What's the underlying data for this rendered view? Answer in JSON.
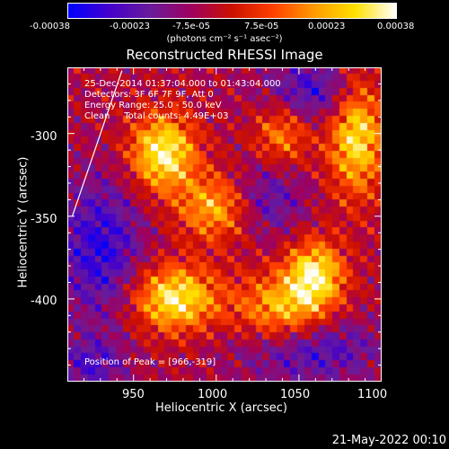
{
  "chart_data": {
    "type": "heatmap",
    "title": "Reconstructed RHESSI Image",
    "xlabel": "Heliocentric X (arcsec)",
    "ylabel": "Heliocentric Y (arcsec)",
    "xlim": [
      910,
      1100
    ],
    "ylim": [
      -450,
      -260
    ],
    "x_ticks": [
      950,
      1000,
      1050,
      1100
    ],
    "y_ticks": [
      -300,
      -350,
      -400
    ],
    "colorbar": {
      "ticks": [
        "-0.00038",
        "-0.00023",
        "-7.5e-05",
        "7.5e-05",
        "0.00023",
        "0.00038"
      ],
      "range": [
        -0.00038,
        0.00038
      ],
      "units": "(photons cm⁻² s⁻¹ asec⁻²)",
      "colormap": [
        "#0000ff",
        "#4400cc",
        "#6a1b9a",
        "#9e0060",
        "#cc1000",
        "#ff4000",
        "#ff9a00",
        "#ffe000",
        "#ffffff"
      ]
    },
    "annotations": {
      "time_range": "25-Dec-2014 01:37:04.000 to 01:43:04.000",
      "detectors": "Detectors: 3F 6F 7F 9F, Att 0",
      "energy": "Energy Range: 25.0 - 50.0 keV",
      "clean": "Clean     Total counts: 4.49E+03",
      "peak": "Position of Peak = [966,-319]"
    },
    "limb_line": [
      [
        913,
        -350
      ],
      [
        943,
        -262
      ]
    ],
    "bright_regions": [
      {
        "x": 968,
        "y": -312,
        "intensity": 1.0,
        "sigma_x": 14,
        "sigma_y": 16
      },
      {
        "x": 1000,
        "y": -345,
        "intensity": 0.7,
        "sigma_x": 16,
        "sigma_y": 14
      },
      {
        "x": 975,
        "y": -400,
        "intensity": 0.95,
        "sigma_x": 18,
        "sigma_y": 14
      },
      {
        "x": 1040,
        "y": -408,
        "intensity": 0.75,
        "sigma_x": 20,
        "sigma_y": 16
      },
      {
        "x": 1060,
        "y": -385,
        "intensity": 0.9,
        "sigma_x": 12,
        "sigma_y": 14
      },
      {
        "x": 1085,
        "y": -300,
        "intensity": 0.9,
        "sigma_x": 12,
        "sigma_y": 26
      },
      {
        "x": 1040,
        "y": -300,
        "intensity": 0.55,
        "sigma_x": 12,
        "sigma_y": 14
      }
    ],
    "dark_regions": [
      {
        "x": 930,
        "y": -370,
        "intensity": 0.95,
        "sigma_x": 18,
        "sigma_y": 30
      },
      {
        "x": 1060,
        "y": -275,
        "intensity": 0.85,
        "sigma_x": 22,
        "sigma_y": 14
      },
      {
        "x": 1055,
        "y": -430,
        "intensity": 0.9,
        "sigma_x": 30,
        "sigma_y": 14
      },
      {
        "x": 1030,
        "y": -340,
        "intensity": 0.7,
        "sigma_x": 16,
        "sigma_y": 16
      },
      {
        "x": 925,
        "y": -440,
        "intensity": 0.7,
        "sigma_x": 14,
        "sigma_y": 12
      }
    ]
  },
  "footer_date": "21-May-2022 00:10"
}
